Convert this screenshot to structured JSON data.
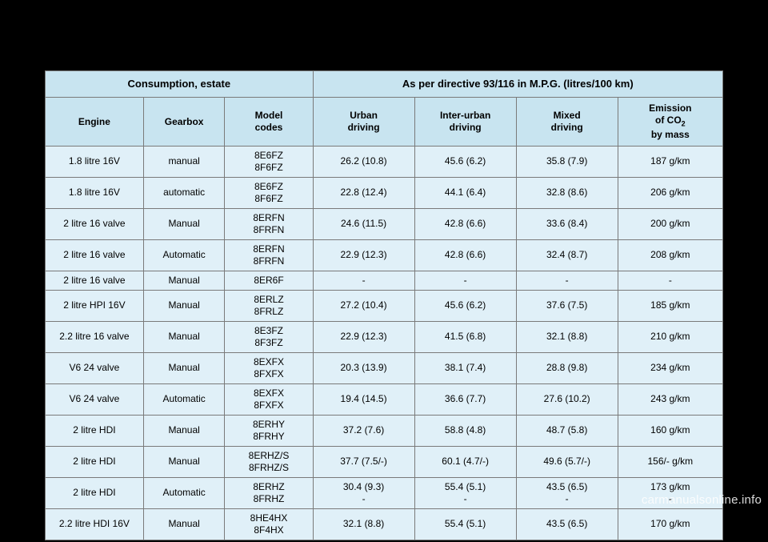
{
  "table": {
    "group_headers": {
      "left": "Consumption, estate",
      "right": "As per directive 93/116 in M.P.G. (litres/100 km)"
    },
    "columns": [
      {
        "label_html": "Engine"
      },
      {
        "label_html": "Gearbox"
      },
      {
        "label_html": "Model<br>codes"
      },
      {
        "label_html": "Urban<br>driving"
      },
      {
        "label_html": "Inter-urban<br>driving"
      },
      {
        "label_html": "Mixed<br>driving"
      },
      {
        "label_html": "Emission<br>of CO<span class=\"sub\">2</span><br>by mass"
      }
    ],
    "rows": [
      [
        "1.8 litre 16V",
        "manual",
        "8E6FZ<br>8F6FZ",
        "26.2 (10.8)",
        "45.6 (6.2)",
        "35.8 (7.9)",
        "187 g/km"
      ],
      [
        "1.8 litre 16V",
        "automatic",
        "8E6FZ<br>8F6FZ",
        "22.8 (12.4)",
        "44.1 (6.4)",
        "32.8 (8.6)",
        "206 g/km"
      ],
      [
        "2 litre 16 valve",
        "Manual",
        "8ERFN<br>8FRFN",
        "24.6 (11.5)",
        "42.8 (6.6)",
        "33.6 (8.4)",
        "200 g/km"
      ],
      [
        "2 litre 16 valve",
        "Automatic",
        "8ERFN<br>8FRFN",
        "22.9 (12.3)",
        "42.8 (6.6)",
        "32.4 (8.7)",
        "208 g/km"
      ],
      [
        "2 litre 16 valve",
        "Manual",
        "8ER6F",
        "-",
        "-",
        "-",
        "-"
      ],
      [
        "2 litre HPI 16V",
        "Manual",
        "8ERLZ<br>8FRLZ",
        "27.2 (10.4)",
        "45.6 (6.2)",
        "37.6 (7.5)",
        "185 g/km"
      ],
      [
        "2.2 litre 16 valve",
        "Manual",
        "8E3FZ<br>8F3FZ",
        "22.9 (12.3)",
        "41.5 (6.8)",
        "32.1 (8.8)",
        "210 g/km"
      ],
      [
        "V6 24 valve",
        "Manual",
        "8EXFX<br>8FXFX",
        "20.3 (13.9)",
        "38.1 (7.4)",
        "28.8 (9.8)",
        "234 g/km"
      ],
      [
        "V6 24 valve",
        "Automatic",
        "8EXFX<br>8FXFX",
        "19.4 (14.5)",
        "36.6 (7.7)",
        "27.6 (10.2)",
        "243 g/km"
      ],
      [
        "2 litre HDI",
        "Manual",
        "8ERHY<br>8FRHY",
        "37.2 (7.6)",
        "58.8 (4.8)",
        "48.7 (5.8)",
        "160 g/km"
      ],
      [
        "2 litre HDI",
        "Manual",
        "8ERHZ/S<br>8FRHZ/S",
        "37.7 (7.5/-)",
        "60.1 (4.7/-)",
        "49.6 (5.7/-)",
        "156/- g/km"
      ],
      [
        "2 litre HDI",
        "Automatic",
        "8ERHZ<br>8FRHZ",
        "30.4 (9.3)<br>-",
        "55.4 (5.1)<br>-",
        "43.5 (6.5)<br>-",
        "173 g/km<br>-"
      ],
      [
        "2.2 litre HDI 16V",
        "Manual",
        "8HE4HX<br>8F4HX",
        "32.1 (8.8)",
        "55.4 (5.1)",
        "43.5 (6.5)",
        "170 g/km"
      ]
    ]
  },
  "watermark": "carmanualsonline.info",
  "colors": {
    "page_bg": "#000000",
    "header_bg": "#c8e4f0",
    "cell_bg": "#e0f0f8",
    "border": "#7a7a7a"
  }
}
